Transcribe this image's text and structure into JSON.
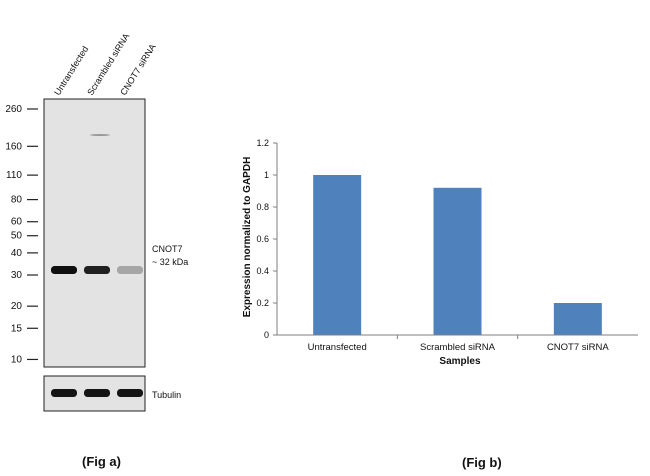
{
  "blot": {
    "lanes": [
      "Untransfected",
      "Scrambled siRNA",
      "CNOT7 siRNA"
    ],
    "ladder": [
      {
        "label": "260",
        "kda": 260
      },
      {
        "label": "160",
        "kda": 160
      },
      {
        "label": "110",
        "kda": 110
      },
      {
        "label": "80",
        "kda": 80
      },
      {
        "label": "60",
        "kda": 60
      },
      {
        "label": "50",
        "kda": 50
      },
      {
        "label": "40",
        "kda": 40
      },
      {
        "label": "30",
        "kda": 30
      },
      {
        "label": "20",
        "kda": 20
      },
      {
        "label": "15",
        "kda": 15
      },
      {
        "label": "10",
        "kda": 10
      }
    ],
    "band_label_line1": "CNOT7",
    "band_label_line2": "~ 32 kDa",
    "band_kda": 32,
    "band_intensity": [
      1.0,
      0.92,
      0.3
    ],
    "loading_label": "Tubulin",
    "caption": "(Fig a)"
  },
  "chart_data": {
    "type": "bar",
    "categories": [
      "Untransfected",
      "Scrambled siRNA",
      "CNOT7 siRNA"
    ],
    "values": [
      1.0,
      0.92,
      0.2
    ],
    "ylim": [
      0,
      1.2
    ],
    "yticks": [
      "0",
      "0.2",
      "0.4",
      "0.6",
      "0.8",
      "1",
      "1.2"
    ],
    "xlabel": "Samples",
    "ylabel": "Expression normalized to GAPDH",
    "grid": false,
    "bar_color": "#4f81bd",
    "caption": "(Fig b)"
  }
}
